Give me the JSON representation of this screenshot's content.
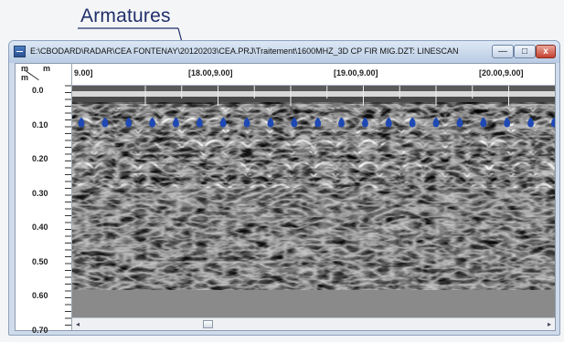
{
  "annotation": {
    "label": "Armatures"
  },
  "window": {
    "title": "E:\\CBODARD\\RADAR\\CEA FONTENAY\\20120203\\CEA.PRJ\\Traitement\\1600MHZ_3D CP FIR MIG.DZT:  LINESCAN",
    "buttons": {
      "minimize": "—",
      "maximize": "□",
      "close": "x"
    }
  },
  "ruler": {
    "unit_top": "m",
    "unit_bottom": "m",
    "x_labels": [
      "9.00]",
      "[18.00,9.00]",
      "[19.00,9.00]",
      "[20.00,9.00]"
    ],
    "depth_labels": [
      "0.0",
      "0.10",
      "0.20",
      "0.30",
      "0.40",
      "0.50",
      "0.60",
      "0.70"
    ]
  },
  "scrollbar": {
    "left_arrow": "◂",
    "right_arrow": "▸",
    "position": 0.26
  },
  "rebar": {
    "count": 21,
    "color": "#1e49b5",
    "depth_m": 0.1
  }
}
